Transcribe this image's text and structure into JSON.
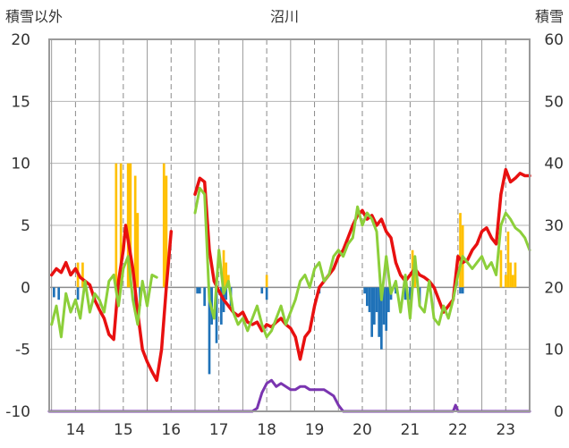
{
  "chart_data": {
    "type": "line",
    "title": "沼川",
    "left_axis_label": "積雪以外",
    "right_axis_label": "積雪",
    "x_ticks": [
      "14",
      "15",
      "16",
      "17",
      "18",
      "19",
      "20",
      "21",
      "22",
      "23"
    ],
    "x_tick_values": [
      14,
      15,
      16,
      17,
      18,
      19,
      20,
      21,
      22,
      23
    ],
    "xlim": [
      13.45,
      23.5
    ],
    "ylim_left": [
      -10,
      20
    ],
    "ylim_right": [
      0,
      60
    ],
    "y_ticks_left": [
      "20",
      "15",
      "10",
      "5",
      "0",
      "-5",
      "-10"
    ],
    "y_tick_values_left": [
      20,
      15,
      10,
      5,
      0,
      -5,
      -10
    ],
    "y_ticks_right": [
      "60",
      "50",
      "40",
      "30",
      "20",
      "10",
      "0"
    ],
    "y_tick_values_right": [
      60,
      50,
      40,
      30,
      20,
      10,
      0
    ],
    "grid": true,
    "colors": {
      "red": "#e81010",
      "green": "#8ccf3a",
      "purple": "#7a35b0",
      "yellow": "#ffc000",
      "blue": "#1f72b8",
      "frame": "#9a9a9a"
    },
    "series": [
      {
        "color": "red",
        "axis": "left",
        "x": [
          13.5,
          13.6,
          13.7,
          13.8,
          13.9,
          14.0,
          14.1,
          14.2,
          14.3,
          14.4,
          14.5,
          14.6,
          14.7,
          14.8,
          14.9,
          15.0,
          15.05,
          15.1,
          15.2,
          15.3,
          15.4,
          15.5,
          15.6,
          15.7,
          15.8,
          15.9,
          16.0
        ],
        "y": [
          1.0,
          1.5,
          1.2,
          2.0,
          1.0,
          1.5,
          0.8,
          0.5,
          0.2,
          -1.0,
          -1.8,
          -2.5,
          -3.8,
          -4.2,
          0.5,
          3.0,
          5.0,
          3.8,
          1.5,
          -2.0,
          -5.0,
          -6.0,
          -6.8,
          -7.5,
          -5.0,
          0.0,
          4.5
        ]
      },
      {
        "color": "red",
        "axis": "left",
        "x": [
          16.5,
          16.6,
          16.7,
          16.8,
          16.9,
          17.0,
          17.1,
          17.2,
          17.3,
          17.4,
          17.5,
          17.6,
          17.7,
          17.8,
          17.9,
          18.0,
          18.1,
          18.2,
          18.3,
          18.4,
          18.5,
          18.6,
          18.7,
          18.8,
          18.9,
          19.0,
          19.1,
          19.2,
          19.3,
          19.4,
          19.5,
          19.6,
          19.7,
          19.8,
          19.9,
          20.0,
          20.1,
          20.2,
          20.3,
          20.4,
          20.5,
          20.6,
          20.7,
          20.8,
          20.9,
          21.0,
          21.1,
          21.2,
          21.3,
          21.4,
          21.5,
          21.6,
          21.7,
          21.8,
          21.9,
          22.0,
          22.1,
          22.2,
          22.3,
          22.4,
          22.5,
          22.6,
          22.7,
          22.8,
          22.9,
          23.0,
          23.1,
          23.2,
          23.3,
          23.4,
          23.5
        ],
        "y": [
          7.5,
          8.8,
          8.5,
          3.0,
          0.5,
          -0.3,
          -1.0,
          -1.5,
          -2.0,
          -2.3,
          -2.0,
          -2.8,
          -3.0,
          -2.8,
          -3.5,
          -3.0,
          -3.2,
          -2.8,
          -2.5,
          -3.0,
          -3.3,
          -4.0,
          -5.8,
          -4.0,
          -3.5,
          -1.5,
          0.0,
          0.5,
          1.0,
          1.5,
          2.5,
          3.0,
          4.0,
          5.0,
          5.8,
          6.2,
          5.5,
          5.8,
          5.0,
          5.5,
          4.5,
          4.0,
          2.0,
          1.0,
          0.5,
          1.0,
          1.5,
          1.0,
          0.8,
          0.5,
          0.0,
          -1.0,
          -2.0,
          -1.5,
          -1.0,
          2.5,
          2.0,
          2.2,
          3.0,
          3.5,
          4.5,
          4.8,
          4.0,
          3.5,
          7.5,
          9.5,
          8.5,
          8.8,
          9.2,
          9.0,
          9.0
        ]
      },
      {
        "color": "green",
        "axis": "left",
        "x": [
          13.5,
          13.6,
          13.7,
          13.8,
          13.9,
          14.0,
          14.1,
          14.2,
          14.3,
          14.4,
          14.5,
          14.6,
          14.7,
          14.8,
          14.9,
          15.0,
          15.1,
          15.2,
          15.3,
          15.4,
          15.5,
          15.6,
          15.7
        ],
        "y": [
          -3.0,
          -1.5,
          -4.0,
          -0.5,
          -2.0,
          -1.0,
          -2.5,
          0.5,
          -2.0,
          -0.5,
          -1.0,
          -2.0,
          0.5,
          1.0,
          -1.5,
          1.5,
          2.5,
          -1.0,
          -3.0,
          0.5,
          -1.5,
          1.0,
          0.8
        ]
      },
      {
        "color": "green",
        "axis": "left",
        "x": [
          16.5,
          16.6,
          16.7,
          16.8,
          16.9,
          17.0,
          17.1,
          17.2,
          17.3,
          17.4,
          17.5,
          17.6,
          17.7,
          17.8,
          17.9,
          18.0,
          18.1,
          18.2,
          18.3,
          18.4,
          18.5,
          18.6,
          18.7,
          18.8,
          18.9,
          19.0,
          19.1,
          19.2,
          19.3,
          19.4,
          19.5,
          19.6,
          19.7,
          19.8,
          19.9,
          20.0,
          20.1,
          20.2,
          20.3,
          20.4,
          20.5,
          20.6,
          20.7,
          20.8,
          20.9,
          21.0,
          21.1,
          21.2,
          21.3,
          21.4,
          21.5,
          21.6,
          21.7,
          21.8,
          21.9,
          22.0,
          22.1,
          22.2,
          22.3,
          22.4,
          22.5,
          22.6,
          22.7,
          22.8,
          22.9,
          23.0,
          23.1,
          23.2,
          23.3,
          23.4,
          23.5
        ],
        "y": [
          6.0,
          8.0,
          7.5,
          -1.0,
          -2.5,
          3.0,
          -0.5,
          0.5,
          -2.0,
          -3.0,
          -2.5,
          -3.5,
          -2.5,
          -1.5,
          -3.0,
          -4.0,
          -3.5,
          -2.5,
          -1.5,
          -3.0,
          -2.0,
          -1.0,
          0.5,
          1.0,
          0.0,
          1.5,
          2.0,
          0.5,
          1.0,
          2.5,
          3.0,
          2.5,
          3.5,
          4.0,
          6.5,
          5.0,
          6.0,
          5.5,
          4.5,
          -1.0,
          2.5,
          -0.5,
          0.5,
          -2.0,
          1.0,
          -2.5,
          2.5,
          -1.5,
          -2.0,
          0.5,
          -2.5,
          -3.0,
          -1.5,
          -2.5,
          -1.0,
          1.0,
          2.5,
          2.0,
          1.5,
          2.0,
          2.5,
          1.5,
          2.0,
          1.0,
          5.0,
          6.0,
          5.5,
          4.8,
          4.5,
          4.0,
          3.0
        ]
      },
      {
        "color": "purple",
        "axis": "right",
        "x": [
          13.45,
          17.7,
          17.8,
          17.9,
          18.0,
          18.1,
          18.2,
          18.3,
          18.4,
          18.5,
          18.6,
          18.7,
          18.8,
          18.9,
          19.0,
          19.1,
          19.2,
          19.3,
          19.4,
          19.5,
          19.6,
          19.7,
          21.9,
          21.95,
          22.0,
          23.5
        ],
        "y": [
          0,
          0,
          0.5,
          3.0,
          4.5,
          5.0,
          4.0,
          4.5,
          4.0,
          3.5,
          3.5,
          4.0,
          4.0,
          3.5,
          3.5,
          3.5,
          3.5,
          3.0,
          2.5,
          1.0,
          0,
          0,
          0,
          1.0,
          0,
          0
        ]
      }
    ],
    "bars_left": [
      {
        "color": "yellow",
        "x": [
          14.05,
          14.15,
          14.85,
          14.95,
          15.1,
          15.15,
          15.25,
          15.3,
          15.85,
          15.9,
          17.1,
          17.15,
          17.2,
          18.0,
          21.05,
          21.1,
          22.05,
          22.1,
          22.9,
          23.0,
          23.05,
          23.1,
          23.15,
          23.2
        ],
        "y": [
          2.0,
          2.0,
          10.0,
          10.0,
          10.0,
          10.0,
          9.0,
          6.0,
          10.0,
          9.0,
          3.0,
          2.0,
          1.0,
          1.0,
          3.0,
          2.0,
          6.0,
          5.0,
          3.0,
          1.0,
          4.5,
          2.0,
          1.0,
          2.0
        ]
      },
      {
        "color": "blue",
        "x": [
          13.55,
          13.65,
          14.05,
          15.25,
          15.35,
          16.55,
          16.6,
          16.7,
          16.8,
          16.85,
          16.95,
          17.05,
          17.1,
          17.15,
          17.25,
          17.9,
          18.0,
          19.1,
          20.05,
          20.1,
          20.15,
          20.2,
          20.25,
          20.3,
          20.35,
          20.4,
          20.45,
          20.5,
          20.55,
          20.6,
          20.7,
          20.9,
          21.0,
          21.2,
          22.05,
          22.1
        ],
        "y": [
          -0.8,
          -1.0,
          -1.0,
          -2.0,
          -1.5,
          -0.5,
          -0.5,
          -1.5,
          -7.0,
          -3.0,
          -4.5,
          -3.0,
          -2.0,
          -1.0,
          -1.5,
          -0.5,
          -1.0,
          -0.5,
          -0.5,
          -1.5,
          -2.0,
          -4.0,
          -3.0,
          -2.0,
          -4.0,
          -5.0,
          -3.0,
          -3.5,
          -2.0,
          -1.0,
          -0.5,
          -1.0,
          -1.0,
          -1.5,
          -0.5,
          -0.5
        ]
      }
    ]
  }
}
